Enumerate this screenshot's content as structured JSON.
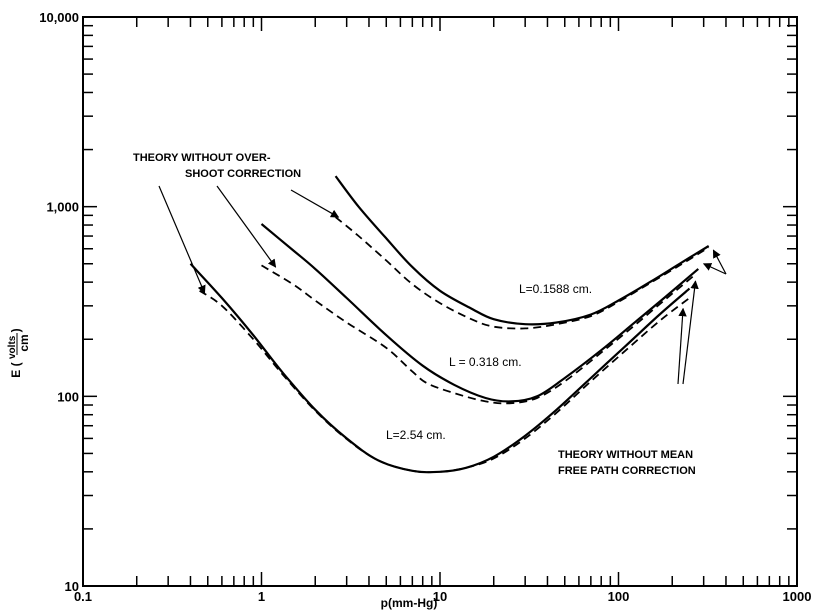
{
  "chart_data": {
    "type": "line",
    "xlabel": "p(mm-Hg)",
    "ylabel": {
      "prefix": "E (",
      "num": "volts",
      "den": "cm",
      "suffix": ")"
    },
    "xscale": "log",
    "yscale": "log",
    "xlim": [
      0.1,
      1000
    ],
    "ylim": [
      10,
      10000
    ],
    "x_tick_labels": [
      {
        "value": 0.1,
        "label": "0.1"
      },
      {
        "value": 1,
        "label": "1"
      },
      {
        "value": 10,
        "label": "10"
      },
      {
        "value": 100,
        "label": "100"
      },
      {
        "value": 1000,
        "label": "1000"
      }
    ],
    "y_tick_labels": [
      {
        "value": 10,
        "label": "10"
      },
      {
        "value": 100,
        "label": "100"
      },
      {
        "value": 1000,
        "label": "1,000"
      },
      {
        "value": 10000,
        "label": "10,000"
      }
    ],
    "series": [
      {
        "name": "L=0.1588 cm.",
        "style": "solid",
        "x": [
          2.6,
          3.5,
          5,
          7,
          10,
          15,
          20,
          30,
          45,
          70,
          100,
          150,
          220,
          320
        ],
        "y": [
          1450,
          1000,
          680,
          480,
          360,
          290,
          255,
          240,
          245,
          270,
          320,
          400,
          500,
          620
        ]
      },
      {
        "name": "",
        "style": "dashed",
        "x": [
          2.6,
          3.5,
          5,
          7,
          10,
          15,
          20,
          30,
          45,
          70,
          100,
          150,
          220,
          320
        ],
        "y": [
          880,
          700,
          520,
          390,
          310,
          255,
          233,
          228,
          240,
          265,
          315,
          395,
          490,
          610
        ]
      },
      {
        "name": "L=0.318 cm.",
        "style": "solid",
        "x": [
          1.0,
          1.5,
          2,
          3,
          5,
          8,
          12,
          18,
          25,
          35,
          50,
          80,
          120,
          180,
          280
        ],
        "y": [
          810,
          590,
          470,
          330,
          210,
          145,
          115,
          98,
          94,
          100,
          125,
          175,
          240,
          330,
          470
        ]
      },
      {
        "name": "",
        "style": "dashed",
        "x": [
          1.0,
          1.5,
          2,
          3,
          5,
          7,
          8.5,
          12,
          18,
          25,
          35,
          50,
          80,
          120,
          180,
          270
        ],
        "y": [
          490,
          390,
          320,
          245,
          180,
          135,
          117,
          104,
          94,
          92,
          98,
          120,
          170,
          232,
          320,
          440
        ]
      },
      {
        "name": "L=2.54 cm.",
        "style": "solid",
        "x": [
          0.4,
          0.6,
          0.9,
          1.3,
          2,
          3,
          4.5,
          7,
          10,
          14,
          20,
          30,
          45,
          70,
          110,
          170,
          250
        ],
        "y": [
          500,
          330,
          210,
          135,
          85,
          60,
          46,
          40.5,
          40,
          42,
          48,
          62,
          85,
          125,
          185,
          270,
          370
        ]
      },
      {
        "name": "",
        "style": "dashed",
        "x": [
          0.45,
          0.6,
          0.9,
          1.3,
          2,
          3,
          4.5,
          7,
          10,
          14,
          20,
          30,
          45,
          70,
          110,
          170,
          250
        ],
        "y": [
          360,
          300,
          200,
          132,
          84,
          59.5,
          46,
          40.5,
          40,
          42,
          47,
          60,
          82,
          120,
          175,
          250,
          330
        ]
      }
    ],
    "curve_labels": [
      "L=0.1588 cm.",
      "L = 0.318 cm.",
      "L=2.54 cm."
    ],
    "annotations": [
      {
        "lines": [
          "THEORY WITHOUT OVER-",
          "SHOOT CORRECTION"
        ]
      },
      {
        "lines": [
          "THEORY WITHOUT MEAN",
          "FREE PATH CORRECTION"
        ]
      }
    ]
  }
}
